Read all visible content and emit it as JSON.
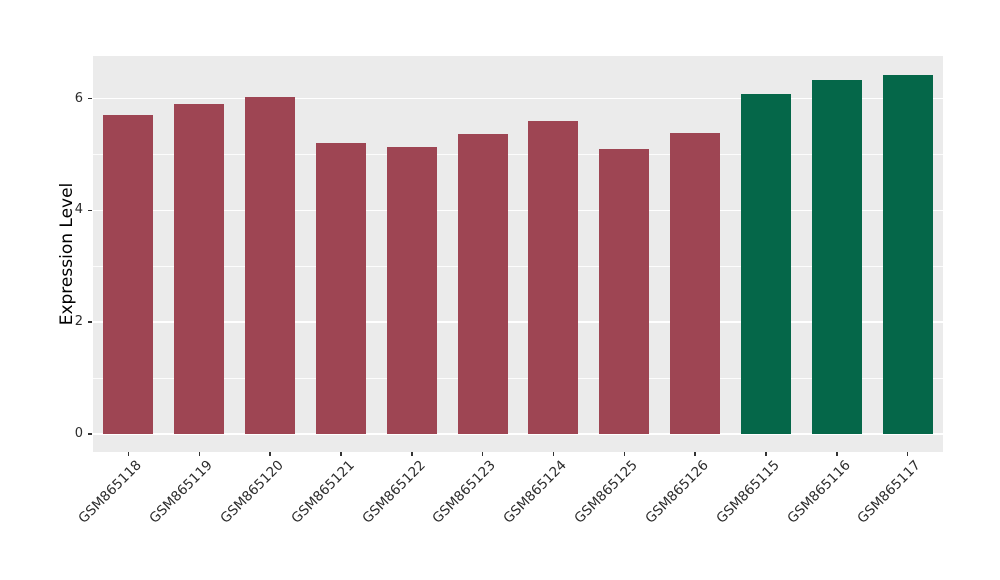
{
  "figure": {
    "background": "#FFFFFF",
    "panel_background": "#EBEBEB",
    "grid_color": "#FFFFFF",
    "tick_color": "#333333",
    "axis_text_color": "#2b2b2b",
    "axis_title_color": "#000000"
  },
  "chart_data": {
    "type": "bar",
    "title": "",
    "xlabel": "",
    "ylabel": "Expression Level",
    "ylim": [
      0,
      6.8
    ],
    "grid": true,
    "legend_position": "none",
    "y_axis": {
      "label": "Expression Level",
      "ticks": [
        0,
        2,
        4,
        6
      ],
      "minor_ticks": [
        1,
        3,
        5
      ]
    },
    "palette": {
      "maroon_group": "#9E4553",
      "green_group": "#056749"
    },
    "categories": [
      "GSM865118",
      "GSM865119",
      "GSM865120",
      "GSM865121",
      "GSM865122",
      "GSM865123",
      "GSM865124",
      "GSM865125",
      "GSM865126",
      "GSM865115",
      "GSM865116",
      "GSM865117"
    ],
    "values": [
      5.71,
      5.9,
      6.02,
      5.21,
      5.13,
      5.36,
      5.6,
      5.1,
      5.39,
      6.08,
      6.33,
      6.43
    ],
    "bars": [
      {
        "label": "GSM865118",
        "value": 5.71,
        "color": "#9E4553"
      },
      {
        "label": "GSM865119",
        "value": 5.9,
        "color": "#9E4553"
      },
      {
        "label": "GSM865120",
        "value": 6.02,
        "color": "#9E4553"
      },
      {
        "label": "GSM865121",
        "value": 5.21,
        "color": "#9E4553"
      },
      {
        "label": "GSM865122",
        "value": 5.13,
        "color": "#9E4553"
      },
      {
        "label": "GSM865123",
        "value": 5.36,
        "color": "#9E4553"
      },
      {
        "label": "GSM865124",
        "value": 5.6,
        "color": "#9E4553"
      },
      {
        "label": "GSM865125",
        "value": 5.1,
        "color": "#9E4553"
      },
      {
        "label": "GSM865126",
        "value": 5.39,
        "color": "#9E4553"
      },
      {
        "label": "GSM865115",
        "value": 6.08,
        "color": "#056749"
      },
      {
        "label": "GSM865116",
        "value": 6.33,
        "color": "#056749"
      },
      {
        "label": "GSM865117",
        "value": 6.43,
        "color": "#056749"
      }
    ]
  }
}
